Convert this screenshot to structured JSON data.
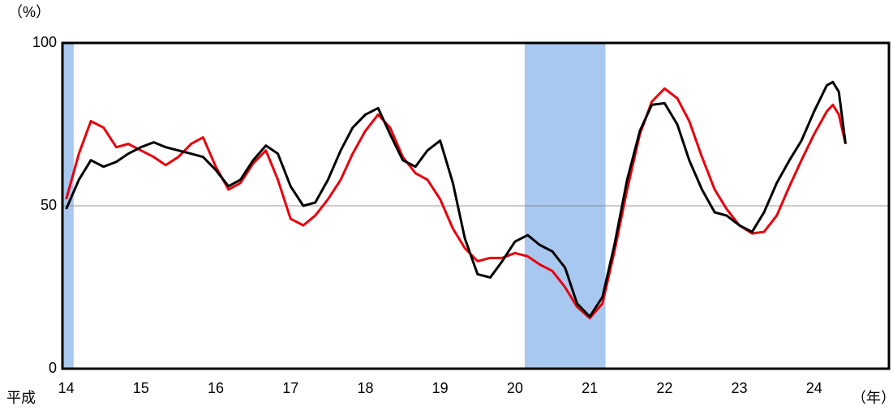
{
  "chart_data": {
    "type": "line",
    "y_unit_label": "（%）",
    "x_prefix_label": "平成",
    "x_unit_label": "（年）",
    "x": [
      14,
      14.17,
      14.33,
      14.5,
      14.67,
      14.83,
      15,
      15.17,
      15.33,
      15.5,
      15.67,
      15.83,
      16,
      16.17,
      16.33,
      16.5,
      16.67,
      16.83,
      17,
      17.17,
      17.33,
      17.5,
      17.67,
      17.83,
      18,
      18.17,
      18.33,
      18.5,
      18.67,
      18.83,
      19,
      19.17,
      19.33,
      19.5,
      19.67,
      19.83,
      20,
      20.17,
      20.33,
      20.5,
      20.67,
      20.83,
      21,
      21.17,
      21.33,
      21.5,
      21.67,
      21.83,
      22,
      22.17,
      22.33,
      22.5,
      22.67,
      22.83,
      23,
      23.17,
      23.33,
      23.5,
      23.67,
      23.83,
      24,
      24.17,
      24.25,
      24.33,
      24.42
    ],
    "series": [
      {
        "color": "#e8000b",
        "values": [
          52,
          66,
          76,
          74,
          68,
          69,
          67,
          65,
          62.5,
          65,
          69,
          71,
          62,
          55,
          57,
          63,
          67,
          58,
          46,
          44,
          47,
          52,
          58,
          66,
          73,
          78,
          74,
          65,
          60,
          58,
          52,
          43,
          37,
          33,
          34,
          34,
          35.5,
          34.5,
          32,
          30,
          25,
          19,
          15.5,
          20,
          36,
          55,
          72,
          82,
          86,
          83,
          76,
          65,
          55,
          49,
          44,
          41.5,
          42,
          47,
          56,
          64,
          72,
          79,
          81,
          78,
          69
        ]
      },
      {
        "color": "#000000",
        "values": [
          49,
          58,
          64,
          62,
          63.5,
          66,
          68,
          69.5,
          68,
          67,
          66,
          65,
          61,
          56,
          58,
          64,
          68.5,
          66,
          56,
          50,
          51,
          58,
          67,
          74,
          78,
          80,
          72,
          64,
          62,
          67,
          70,
          57,
          40,
          29,
          28,
          33,
          39,
          41,
          38,
          36,
          31,
          20,
          16,
          22,
          38,
          58,
          73,
          81,
          81.5,
          75,
          64,
          55,
          48,
          47,
          44,
          42,
          48,
          57,
          64,
          70,
          79,
          87,
          88,
          85,
          69
        ]
      }
    ],
    "shaded": [
      [
        13.95,
        14.1
      ],
      [
        20.13,
        21.21
      ]
    ],
    "shade_color": "#a9c8ef",
    "xlim": [
      13.95,
      25
    ],
    "xticks": [
      14,
      15,
      16,
      17,
      18,
      19,
      20,
      21,
      22,
      23,
      24
    ],
    "ylim": [
      0,
      100
    ],
    "yticks": [
      0,
      50,
      100
    ],
    "grid": true
  }
}
